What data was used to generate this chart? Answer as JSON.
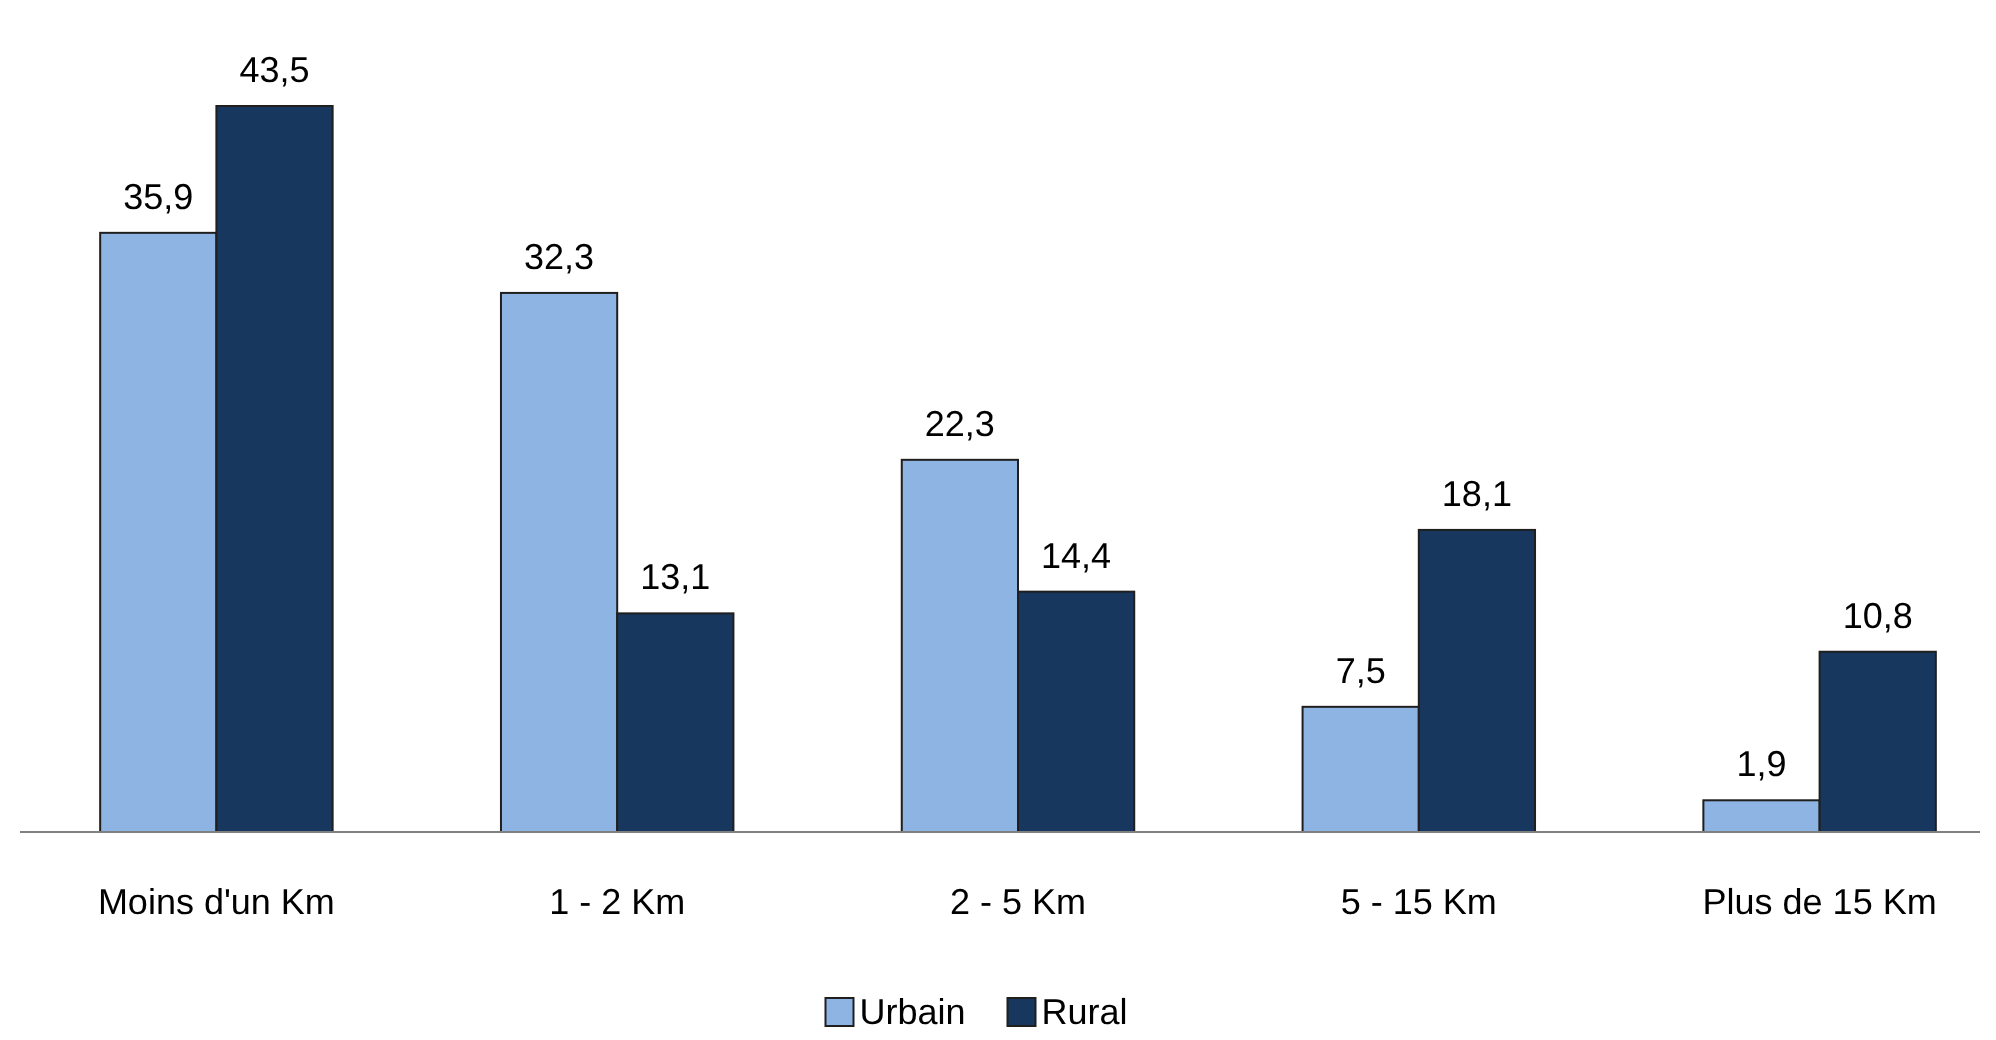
{
  "chart_data": {
    "type": "bar",
    "categories": [
      "Moins d'un Km",
      "1 - 2 Km",
      "2 - 5 Km",
      "5 - 15 Km",
      "Plus de 15 Km"
    ],
    "series": [
      {
        "name": "Urbain",
        "color": "#8db4e2",
        "values": [
          35.9,
          32.3,
          22.3,
          7.5,
          1.9
        ],
        "value_labels": [
          "35,9",
          "32,3",
          "22,3",
          "7,5",
          "1,9"
        ]
      },
      {
        "name": "Rural",
        "color": "#17375e",
        "values": [
          43.5,
          13.1,
          14.4,
          18.1,
          10.8
        ],
        "value_labels": [
          "43,5",
          "13,1",
          "14,4",
          "18,1",
          "10,8"
        ]
      }
    ],
    "legend": "bottom"
  }
}
